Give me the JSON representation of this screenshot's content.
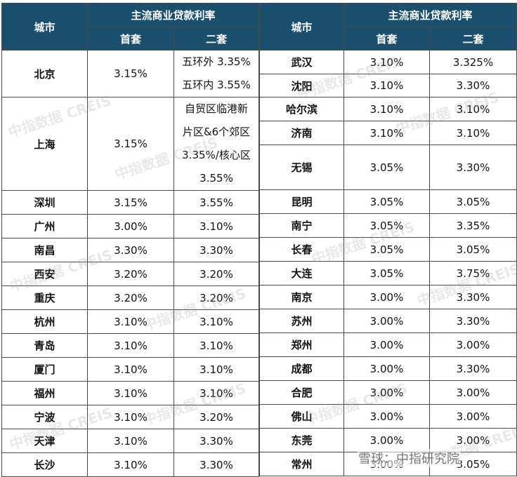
{
  "header": {
    "city": "城市",
    "rate": "主流商业贷款利率",
    "first": "首套",
    "second": "二套"
  },
  "left": [
    {
      "city": "北京",
      "first": "3.15%",
      "second_lines": [
        "五环外 3.35%",
        "五环内 3.55%"
      ]
    },
    {
      "city": "上海",
      "first": "3.15%",
      "second_lines": [
        "自贸区临港新",
        "片区&6个郊区",
        "3.35%/核心区",
        "3.55%"
      ]
    },
    {
      "city": "深圳",
      "first": "3.15%",
      "second": "3.55%"
    },
    {
      "city": "广州",
      "first": "3.00%",
      "second": "3.10%"
    },
    {
      "city": "南昌",
      "first": "3.30%",
      "second": "3.30%"
    },
    {
      "city": "西安",
      "first": "3.20%",
      "second": "3.20%"
    },
    {
      "city": "重庆",
      "first": "3.20%",
      "second": "3.20%"
    },
    {
      "city": "杭州",
      "first": "3.10%",
      "second": "3.10%"
    },
    {
      "city": "青岛",
      "first": "3.10%",
      "second": "3.10%"
    },
    {
      "city": "厦门",
      "first": "3.10%",
      "second": "3.10%"
    },
    {
      "city": "福州",
      "first": "3.10%",
      "second": "3.10%"
    },
    {
      "city": "宁波",
      "first": "3.10%",
      "second": "3.20%"
    },
    {
      "city": "天津",
      "first": "3.10%",
      "second": "3.30%"
    },
    {
      "city": "长沙",
      "first": "3.10%",
      "second": "3.30%"
    }
  ],
  "right": [
    {
      "city": "武汉",
      "first": "3.10%",
      "second": "3.325%"
    },
    {
      "city": "沈阳",
      "first": "3.10%",
      "second": "3.30%"
    },
    {
      "city": "哈尔滨",
      "first": "3.10%",
      "second": "3.10%"
    },
    {
      "city": "济南",
      "first": "3.10%",
      "second": "3.10%"
    },
    {
      "city": "无锡",
      "first": "3.05%",
      "second": "3.30%"
    },
    {
      "city": "昆明",
      "first": "3.05%",
      "second": "3.05%"
    },
    {
      "city": "南宁",
      "first": "3.05%",
      "second": "3.35%"
    },
    {
      "city": "长春",
      "first": "3.05%",
      "second": "3.05%"
    },
    {
      "city": "大连",
      "first": "3.05%",
      "second": "3.75%"
    },
    {
      "city": "南京",
      "first": "3.00%",
      "second": "3.30%"
    },
    {
      "city": "苏州",
      "first": "3.00%",
      "second": "3.30%"
    },
    {
      "city": "郑州",
      "first": "3.00%",
      "second": "3.00%"
    },
    {
      "city": "成都",
      "first": "3.00%",
      "second": "3.30%"
    },
    {
      "city": "合肥",
      "first": "3.00%",
      "second": "3.00%"
    },
    {
      "city": "佛山",
      "first": "3.00%",
      "second": "3.00%"
    },
    {
      "city": "东莞",
      "first": "3.00%",
      "second": "3.00%"
    },
    {
      "city": "常州",
      "first": "3.00%",
      "second": "3.05%"
    }
  ],
  "watermark": "中指数据 CREIS",
  "logo": "雪球：中指研究院",
  "colors": {
    "header_bg": "#1b4f6e",
    "header_text": "#ffffff"
  }
}
